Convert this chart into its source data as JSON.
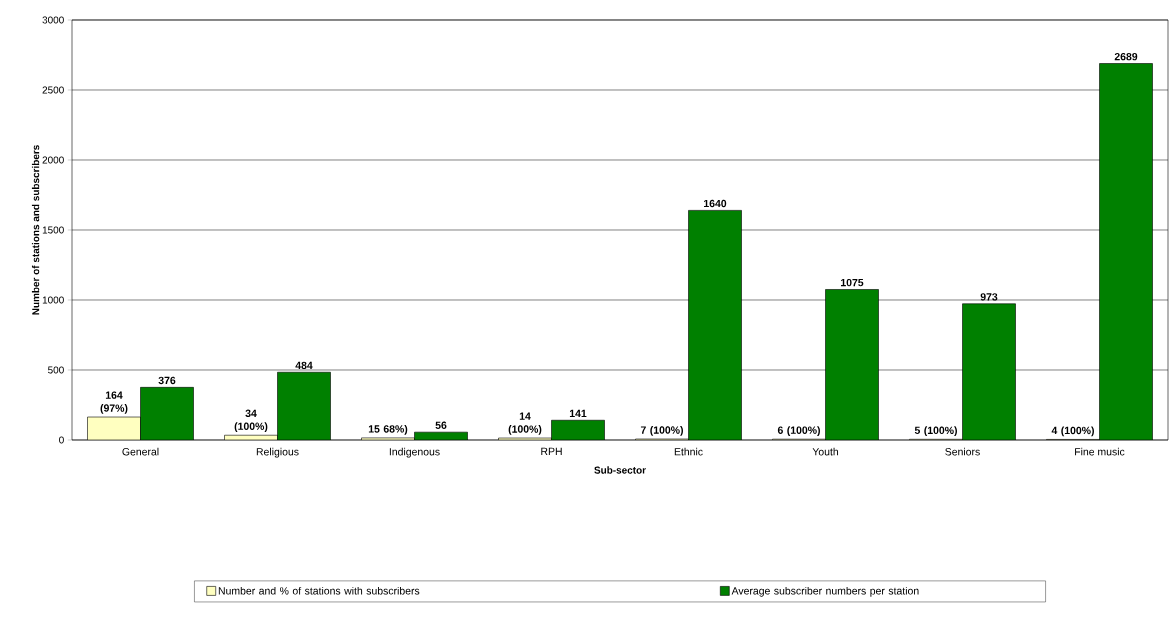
{
  "chart_data": {
    "type": "bar",
    "xlabel": "Sub-sector",
    "ylabel": "Number of stations and subscribers",
    "categories": [
      "General",
      "Religious",
      "Indigenous",
      "RPH",
      "Ethnic",
      "Youth",
      "Seniors",
      "Fine music"
    ],
    "series": [
      {
        "name": "Number and % of stations with subscribers",
        "color": "#ffffc0",
        "values": [
          164,
          34,
          15,
          14,
          7,
          6,
          5,
          4
        ],
        "value_labels": [
          "164 (97%)",
          "34 (100%)",
          "15 68%)",
          "14 (100%)",
          "7 (100%)",
          "6 (100%)",
          "5 (100%)",
          "4 (100%)"
        ]
      },
      {
        "name": "Average subscriber numbers per station",
        "color": "#008000",
        "values": [
          376,
          484,
          56,
          141,
          1640,
          1075,
          973,
          2689
        ],
        "value_labels": [
          "376",
          "484",
          "56",
          "141",
          "1640",
          "1075",
          "973",
          "2689"
        ]
      }
    ],
    "ylim": [
      0,
      3000
    ],
    "yticks": [
      0,
      500,
      1000,
      1500,
      2000,
      2500,
      3000
    ],
    "grid": "y",
    "legend": "bottom"
  }
}
